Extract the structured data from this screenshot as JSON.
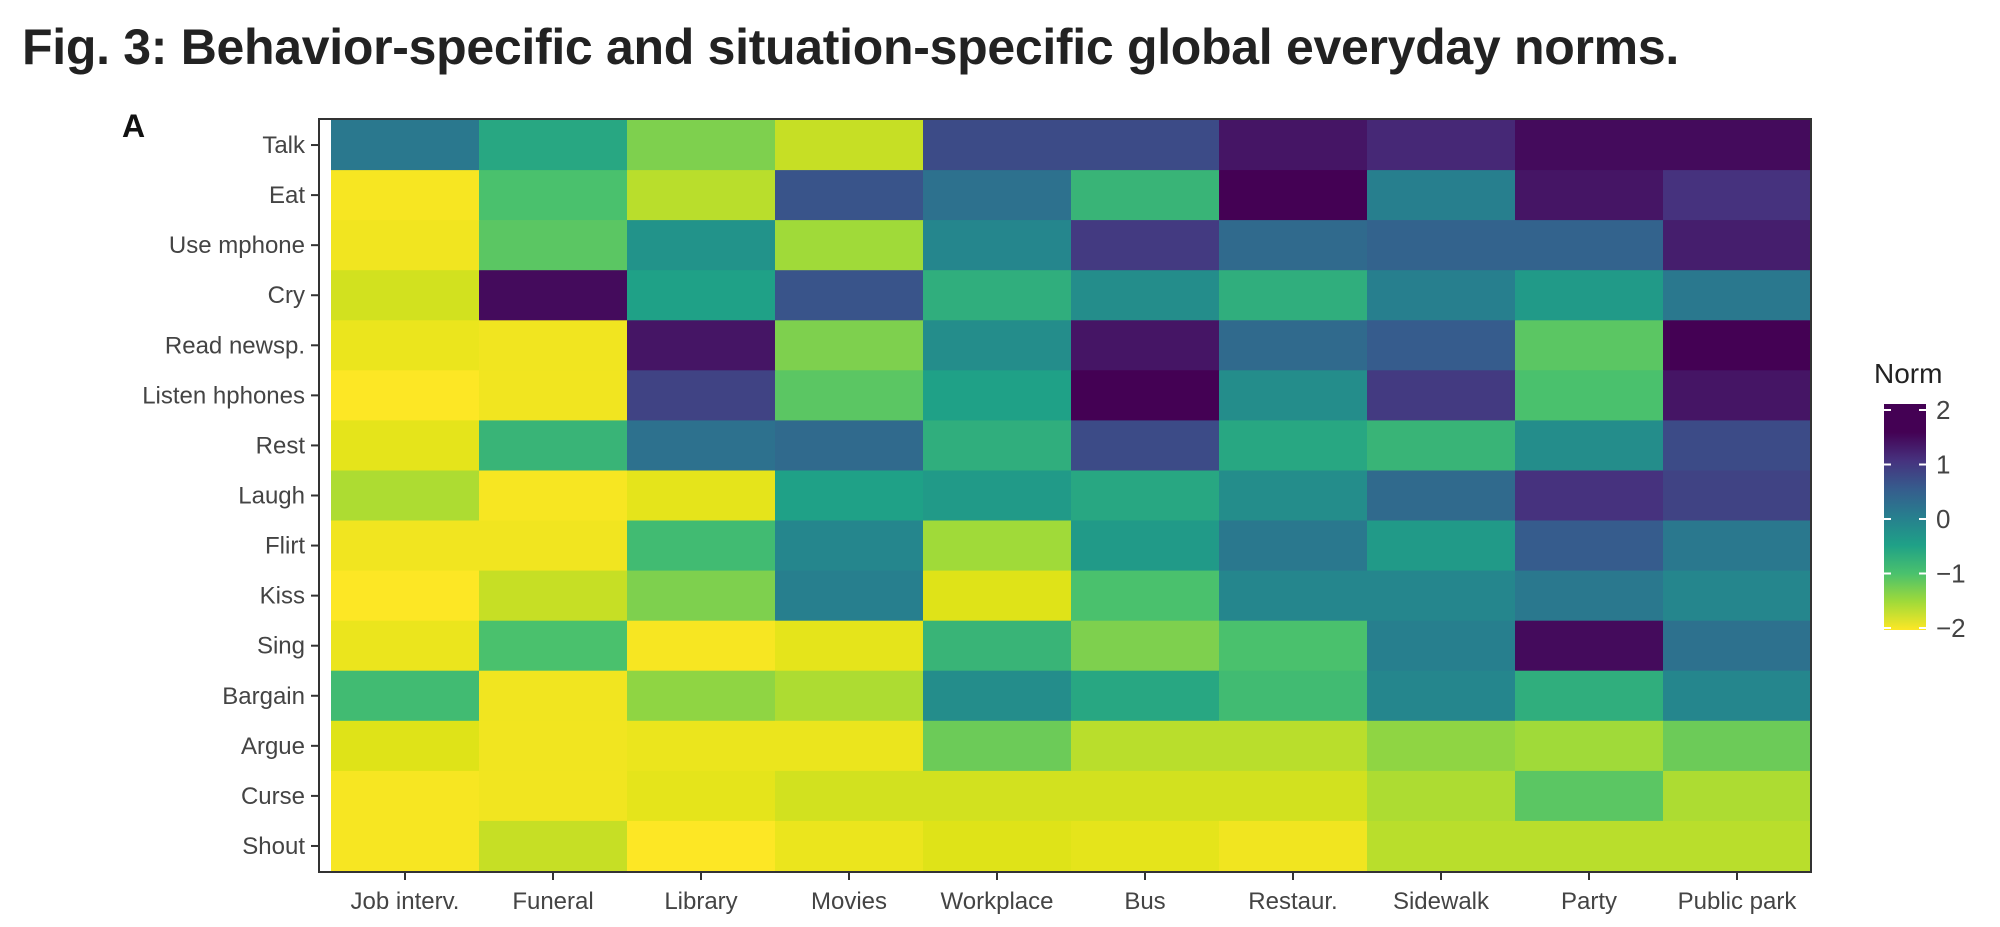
{
  "figure": {
    "title": "Fig. 3: Behavior-specific and situation-specific global everyday norms.",
    "panel_label": "A"
  },
  "chart_data": {
    "type": "heatmap",
    "title": "",
    "xlabel": "",
    "ylabel": "",
    "x_categories": [
      "Job interv.",
      "Funeral",
      "Library",
      "Movies",
      "Workplace",
      "Bus",
      "Restaur.",
      "Sidewalk",
      "Party",
      "Public park"
    ],
    "y_categories": [
      "Talk",
      "Eat",
      "Use mphone",
      "Cry",
      "Read newsp.",
      "Listen hphones",
      "Rest",
      "Laugh",
      "Flirt",
      "Kiss",
      "Sing",
      "Bargain",
      "Argue",
      "Curse",
      "Shout"
    ],
    "values": [
      [
        0.6,
        -0.1,
        -0.8,
        -1.3,
        1.2,
        1.2,
        1.8,
        1.6,
        1.9,
        1.9
      ],
      [
        -1.9,
        -0.5,
        -1.2,
        1.1,
        0.7,
        -0.3,
        2.3,
        0.5,
        1.8,
        1.5
      ],
      [
        -1.8,
        -0.6,
        0.2,
        -1.0,
        0.4,
        1.4,
        0.8,
        0.9,
        0.9,
        1.7
      ],
      [
        -1.4,
        1.9,
        0.0,
        1.1,
        -0.2,
        0.3,
        -0.2,
        0.5,
        0.1,
        0.6
      ],
      [
        -1.7,
        -1.8,
        1.8,
        -0.8,
        0.3,
        1.8,
        0.8,
        1.0,
        -0.6,
        2.0
      ],
      [
        -2.0,
        -1.8,
        1.3,
        -0.6,
        0.0,
        2.0,
        0.3,
        1.4,
        -0.5,
        1.8
      ],
      [
        -1.6,
        -0.3,
        0.7,
        0.8,
        -0.2,
        1.2,
        -0.1,
        -0.3,
        0.3,
        1.2
      ],
      [
        -1.1,
        -1.9,
        -1.6,
        0.0,
        0.1,
        -0.1,
        0.3,
        0.8,
        1.5,
        1.3
      ],
      [
        -1.8,
        -1.8,
        -0.4,
        0.4,
        -1.0,
        0.1,
        0.6,
        0.1,
        1.0,
        0.6
      ],
      [
        -2.1,
        -1.3,
        -0.8,
        0.5,
        -1.5,
        -0.5,
        0.4,
        0.4,
        0.6,
        0.4
      ],
      [
        -1.7,
        -0.5,
        -1.9,
        -1.6,
        -0.3,
        -0.8,
        -0.5,
        0.5,
        1.9,
        0.7
      ],
      [
        -0.4,
        -1.8,
        -0.9,
        -1.1,
        0.3,
        -0.1,
        -0.4,
        0.4,
        -0.2,
        0.4
      ],
      [
        -1.5,
        -1.8,
        -1.7,
        -1.7,
        -0.7,
        -1.2,
        -1.2,
        -0.9,
        -1.0,
        -0.7
      ],
      [
        -1.9,
        -1.8,
        -1.6,
        -1.4,
        -1.4,
        -1.4,
        -1.4,
        -1.1,
        -0.6,
        -1.1
      ],
      [
        -1.9,
        -1.3,
        -2.0,
        -1.7,
        -1.5,
        -1.6,
        -1.8,
        -1.2,
        -1.2,
        -1.2
      ]
    ],
    "colorscale": "viridis (reversed: yellow = -2, dark purple = 2)",
    "zlim": [
      -2,
      2
    ],
    "legend": {
      "title": "Norm",
      "ticks": [
        2,
        1,
        0,
        -1,
        -2
      ],
      "tick_labels": [
        "2",
        "1",
        "0",
        "−1",
        "−2"
      ],
      "placement": "right"
    }
  }
}
